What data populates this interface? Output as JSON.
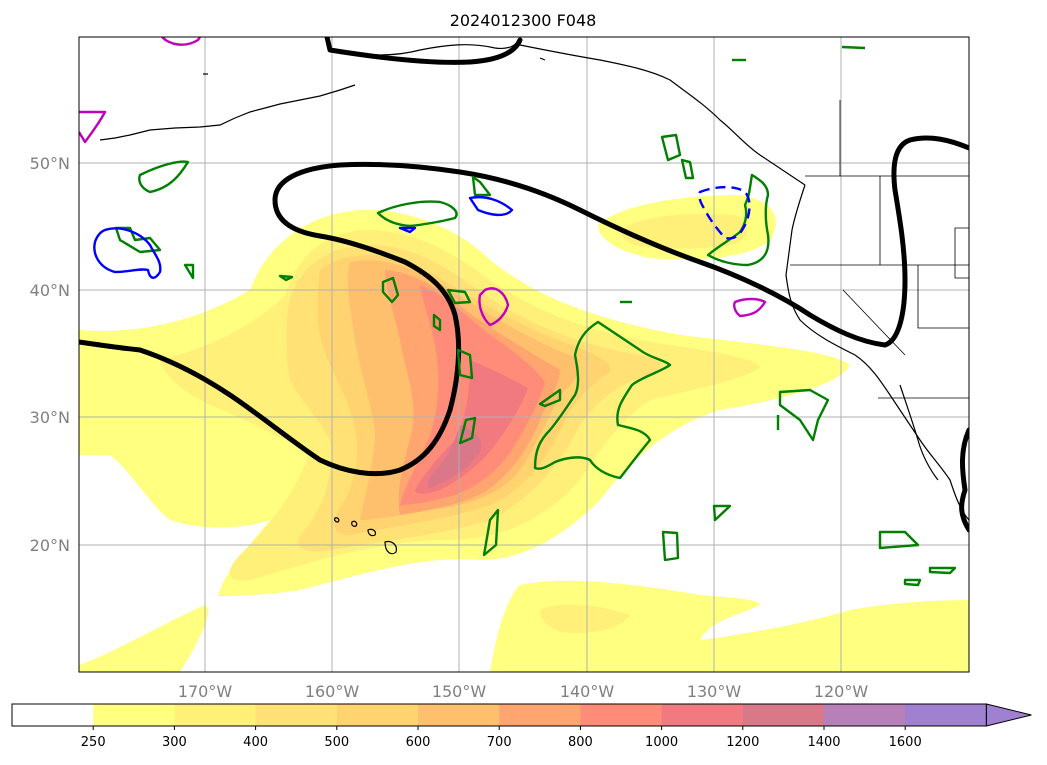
{
  "title": "2024012300 F048",
  "lat_labels": [
    "50°N",
    "40°N",
    "30°N",
    "20°N"
  ],
  "lon_labels": [
    "170°W",
    "160°W",
    "150°W",
    "140°W",
    "130°W",
    "120°W"
  ],
  "colorbar": {
    "ticks": [
      "250",
      "300",
      "400",
      "500",
      "600",
      "700",
      "800",
      "1000",
      "1200",
      "1400",
      "1600"
    ],
    "colors": [
      "#ffffff",
      "#ffff80",
      "#fff07a",
      "#ffe175",
      "#ffd470",
      "#ffc06d",
      "#ffa570",
      "#ff8c78",
      "#f07a80",
      "#d87888",
      "#b880b8",
      "#a080d0"
    ],
    "extend": "max"
  },
  "colors": {
    "height_contour": "#000000",
    "green_contour": "#008000",
    "blue_contour": "#0000ff",
    "magenta_contour": "#c000c0",
    "gridline": "#b0b0b0"
  }
}
